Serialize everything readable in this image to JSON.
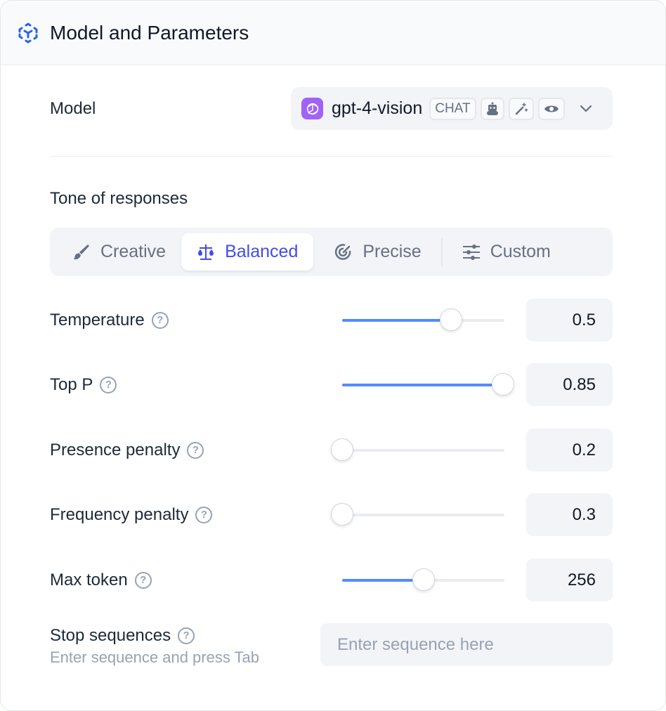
{
  "header": {
    "title": "Model and Parameters",
    "icon": "model-cube-icon",
    "accent": "#2563eb"
  },
  "model": {
    "label": "Model",
    "name": "gpt-4-vision",
    "badge": "CHAT",
    "features": [
      "robot-icon",
      "magic-wand-icon",
      "eye-icon"
    ],
    "brand_color": "#a162f7"
  },
  "tone": {
    "label": "Tone of responses",
    "tabs": [
      {
        "label": "Creative",
        "icon": "brush-icon",
        "active": false
      },
      {
        "label": "Balanced",
        "icon": "scale-icon",
        "active": true
      },
      {
        "label": "Precise",
        "icon": "target-icon",
        "active": false
      },
      {
        "label": "Custom",
        "icon": "sliders-icon",
        "active": false
      }
    ]
  },
  "params": [
    {
      "label": "Temperature",
      "value": "0.5",
      "fill": 0.67
    },
    {
      "label": "Top P",
      "value": "0.85",
      "fill": 0.99
    },
    {
      "label": "Presence penalty",
      "value": "0.2",
      "fill": 0
    },
    {
      "label": "Frequency penalty",
      "value": "0.3",
      "fill": 0
    },
    {
      "label": "Max token",
      "value": "256",
      "fill": 0.5
    }
  ],
  "stop": {
    "label": "Stop sequences",
    "hint": "Enter sequence and press Tab",
    "placeholder": "Enter sequence here"
  }
}
